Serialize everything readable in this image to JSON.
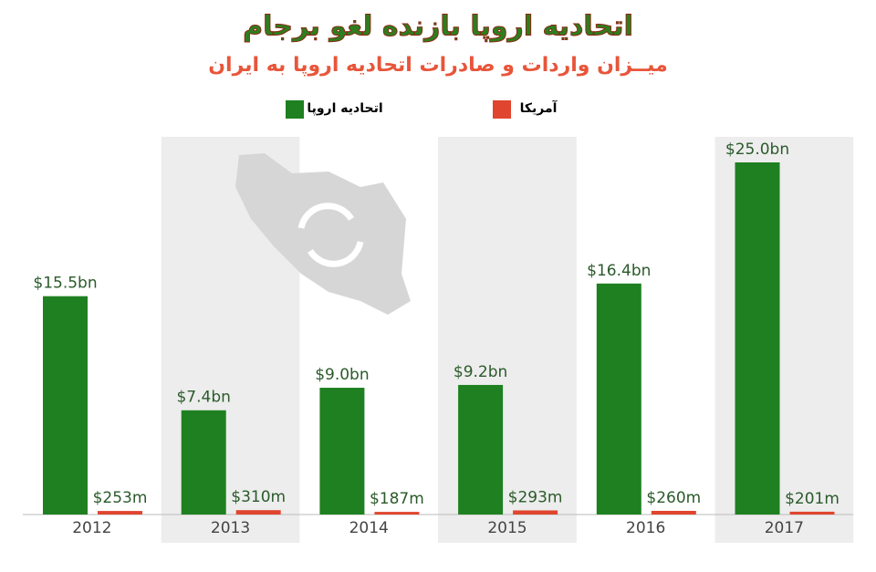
{
  "chart_data": {
    "type": "bar",
    "title": "اتحادیه اروپا بازنده لغو برجام",
    "subtitle": "میــزان واردات و صادرات اتحادیه اروپا به ایران",
    "categories": [
      "2012",
      "2013",
      "2014",
      "2015",
      "2016",
      "2017"
    ],
    "series": [
      {
        "name": "اتحادیه اروپا",
        "color": "#1e8020",
        "values": [
          15.5,
          7.4,
          9.0,
          9.2,
          16.4,
          25.0
        ],
        "value_labels": [
          "$15.5bn",
          "$7.4bn",
          "$9.0bn",
          "$9.2bn",
          "$16.4bn",
          "$25.0bn"
        ]
      },
      {
        "name": "آمریکا",
        "color": "#e0452f",
        "values": [
          0.253,
          0.31,
          0.187,
          0.293,
          0.26,
          0.201
        ],
        "value_labels": [
          "$253m",
          "$310m",
          "$187m",
          "$293m",
          "$260m",
          "$201m"
        ]
      }
    ]
  }
}
